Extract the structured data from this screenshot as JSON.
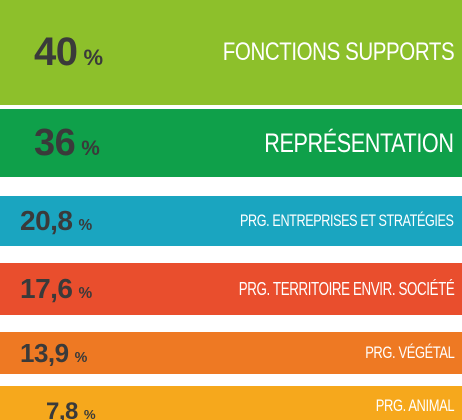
{
  "rows": [
    {
      "value": "40",
      "unit": "%",
      "label": "FONCTIONS SUPPORTS",
      "color": "#8dc02b"
    },
    {
      "value": "36",
      "unit": "%",
      "label": "REPRÉSENTATION",
      "color": "#0fa04a"
    },
    {
      "value": "20,8",
      "unit": "%",
      "label": "PRG. ENTREPRISES ET STRATÉGIES",
      "color": "#1aa5c0"
    },
    {
      "value": "17,6",
      "unit": "%",
      "label": "PRG. TERRITOIRE ENVIR. SOCIÉTÉ",
      "color": "#e94e2d"
    },
    {
      "value": "13,9",
      "unit": "%",
      "label": "PRG. VÉGÉTAL",
      "color": "#ee7923"
    },
    {
      "value": "7,8",
      "unit": "%",
      "label": "PRG. ANIMAL",
      "color": "#f6a81c"
    }
  ]
}
